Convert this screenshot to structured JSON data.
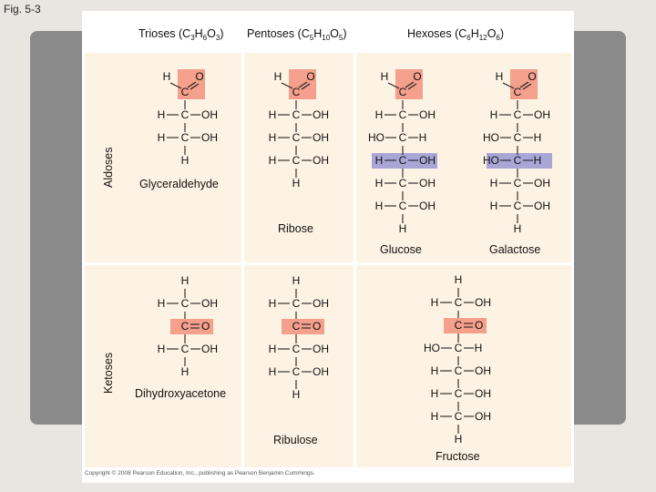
{
  "slide_title": "Fig. 5-3",
  "headers": {
    "trioses": {
      "base": "Trioses (C",
      "s1": "3",
      "m1": "H",
      "s2": "6",
      "m2": "O",
      "s3": "3",
      "end": ")"
    },
    "pentoses": {
      "base": "Pentoses (C",
      "s1": "5",
      "m1": "H",
      "s2": "10",
      "m2": "O",
      "s3": "5",
      "end": ")"
    },
    "hexoses": {
      "base": "Hexoses (C",
      "s1": "6",
      "m1": "H",
      "s2": "12",
      "m2": "O",
      "s3": "6",
      "end": ")"
    }
  },
  "row_labels": {
    "aldoses": "Aldoses",
    "ketoses": "Ketoses"
  },
  "molecules": {
    "glyceraldehyde": "Glyceraldehyde",
    "ribose": "Ribose",
    "glucose": "Glucose",
    "galactose": "Galactose",
    "dihydroxyacetone": "Dihydroxyacetone",
    "ribulose": "Ribulose",
    "fructose": "Fructose"
  },
  "atoms": {
    "H": "H",
    "C": "C",
    "O": "O",
    "OH": "OH",
    "HO": "HO"
  },
  "copyright": "Copyright © 2008 Pearson Education, Inc., publishing as Pearson Benjamin Cummings.",
  "colors": {
    "carbonyl": "#f4a08c",
    "highlight": "#a9a6d6",
    "cell": "#fdf3e4",
    "divider": "#d9d0c2"
  }
}
